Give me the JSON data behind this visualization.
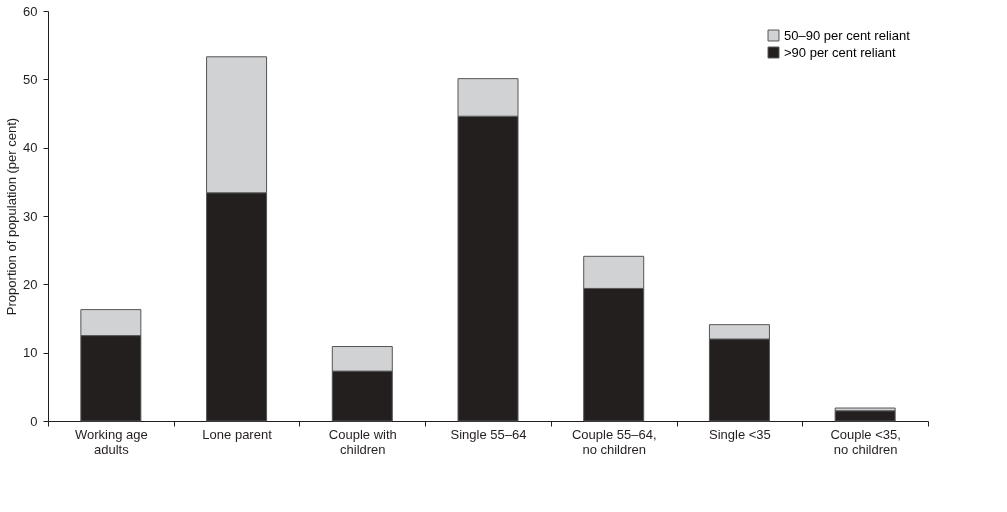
{
  "chart_data": {
    "type": "bar",
    "stacked": true,
    "ylabel": "Proportion of population (per cent)",
    "categories": [
      "Working age\nadults",
      "Lone parent",
      "Couple with\nchildren",
      "Single 55–64",
      "Couple 55–64,\nno children",
      "Single <35",
      "Couple <35,\nno children"
    ],
    "series": [
      {
        "name": ">90 per cent reliant",
        "color": "#231f1e",
        "values": [
          12.5,
          33.4,
          7.3,
          44.6,
          19.4,
          12.0,
          1.5
        ]
      },
      {
        "name": "50–90 per cent reliant",
        "color": "#d1d2d4",
        "values": [
          3.8,
          19.9,
          3.6,
          5.5,
          4.7,
          2.1,
          0.4
        ]
      }
    ],
    "ylim": [
      0,
      60
    ],
    "yticks": [
      0,
      10,
      20,
      30,
      40,
      50,
      60
    ],
    "grid": false,
    "legend": "top right"
  }
}
